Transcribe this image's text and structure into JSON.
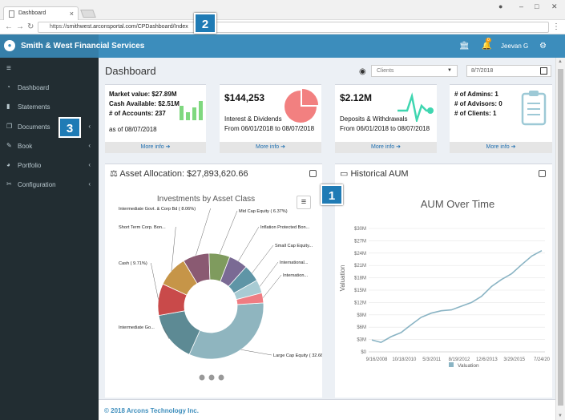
{
  "browser": {
    "tab_title": "Dashboard",
    "url_prefix": "https://",
    "url_rest": "smithwest.arconsportal.com/CPDashboard/Index"
  },
  "app": {
    "brand": "Smith & West Financial Services",
    "user": "Jeevan G",
    "notification_count": "0"
  },
  "sidebar": {
    "items": [
      {
        "label": "Dashboard",
        "icon": "dashboard-icon",
        "has_caret": false
      },
      {
        "label": "Statements",
        "icon": "book-icon",
        "has_caret": false
      },
      {
        "label": "Documents",
        "icon": "copy-icon",
        "has_caret": true
      },
      {
        "label": "Book",
        "icon": "edit-icon",
        "has_caret": true
      },
      {
        "label": "Portfolio",
        "icon": "pie-icon",
        "has_caret": true
      },
      {
        "label": "Configuration",
        "icon": "wrench-icon",
        "has_caret": true
      }
    ]
  },
  "header": {
    "title": "Dashboard",
    "client_select": "Clients",
    "date": "8/7/2018"
  },
  "boxes": {
    "market": {
      "line1": "Market value: $27.89M",
      "line2": "Cash Available: $2.51M",
      "line3": "# of Accounts: 237",
      "line4": "as of 08/07/2018",
      "more": "More info"
    },
    "interest": {
      "value": "$144,253",
      "line1": "Interest & Dividends",
      "line2": "From 06/01/2018 to 08/07/2018",
      "more": "More info"
    },
    "deposits": {
      "value": "$2.12M",
      "line1": "Deposits & Withdrawals",
      "line2": "From 06/01/2018 to 08/07/2018",
      "more": "More info"
    },
    "admins": {
      "line1": "# of Admins: 1",
      "line2": "# of Advisors: 0",
      "line3": "# of Clients: 1",
      "more": "More info"
    }
  },
  "asset_panel": {
    "title": "Asset Allocation: $27,893,620.66",
    "chart_title": "Investments by Asset Class"
  },
  "aum_panel": {
    "title": "Historical AUM",
    "chart_title": "AUM Over Time",
    "ylabel": "Valuation",
    "legend": "Valuation"
  },
  "footer": "© 2018 Arcons Technology Inc.",
  "callouts": {
    "c1": "1",
    "c2": "2",
    "c3": "3"
  },
  "colors": {
    "brand": "#3c8dbc",
    "sidebar": "#222d32",
    "link": "#1f6fb0",
    "aum_line": "#8ab4c4"
  },
  "chart_data": [
    {
      "type": "pie",
      "title": "Investments by Asset Class",
      "slices": [
        {
          "label": "Large Cap Equity ( 32.66%)",
          "value": 32.66,
          "color": "#8fb5bf"
        },
        {
          "label": "Intermediate Go...",
          "value": 15.5,
          "color": "#5d8a94"
        },
        {
          "label": "Cash ( 9.71%)",
          "value": 9.71,
          "color": "#c94a4a"
        },
        {
          "label": "Short Term Corp. Bon...",
          "value": 9.5,
          "color": "#c69548"
        },
        {
          "label": "Intermediate Govt. & Corp Bd ( 8.06%)",
          "value": 8.06,
          "color": "#8a5a72"
        },
        {
          "label": "Mid Cap Equity ( 6.37%)",
          "value": 6.37,
          "color": "#7f9b5e"
        },
        {
          "label": "Inflation Protected Bon...",
          "value": 5.8,
          "color": "#7a6a94"
        },
        {
          "label": "Small Cap Equity...",
          "value": 5.2,
          "color": "#5f95a6"
        },
        {
          "label": "International...",
          "value": 4.1,
          "color": "#a8cbd3"
        },
        {
          "label": "Internation...",
          "value": 3.04,
          "color": "#ef7c82"
        }
      ]
    },
    {
      "type": "line",
      "title": "AUM Over Time",
      "ylabel": "Valuation",
      "yticks": [
        "$0",
        "$3M",
        "$6M",
        "$9M",
        "$12M",
        "$15M",
        "$18M",
        "$21M",
        "$24M",
        "$27M",
        "$30M"
      ],
      "ylim": [
        0,
        30
      ],
      "xticks": [
        "9/16/2008",
        "10/18/2010",
        "5/3/2011",
        "8/19/2012",
        "12/6/2013",
        "3/29/2015",
        "7/24/20"
      ],
      "series": [
        {
          "name": "Valuation",
          "x": [
            "2008-09-16",
            "2009-03-01",
            "2009-09-01",
            "2010-03-01",
            "2010-09-01",
            "2011-03-01",
            "2011-09-01",
            "2012-03-01",
            "2012-09-01",
            "2013-03-01",
            "2013-09-01",
            "2014-03-01",
            "2014-09-01",
            "2015-03-01",
            "2015-09-01",
            "2016-03-01",
            "2016-09-01",
            "2017-03-01"
          ],
          "values": [
            2.9,
            2.3,
            3.7,
            4.7,
            6.6,
            8.4,
            9.4,
            10.0,
            10.2,
            11.1,
            12.0,
            13.5,
            15.9,
            17.6,
            19.0,
            21.2,
            23.3,
            24.6
          ]
        }
      ]
    }
  ]
}
